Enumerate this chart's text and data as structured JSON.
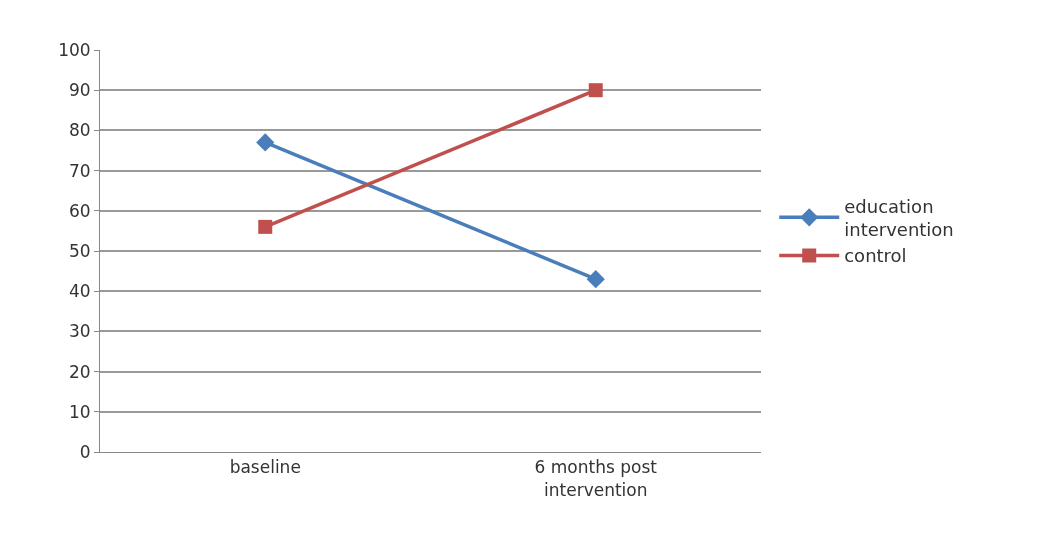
{
  "chart_data": {
    "type": "line",
    "categories": [
      "baseline",
      "6 months post intervention"
    ],
    "series": [
      {
        "name": "education intervention",
        "color": "#4a7ebb",
        "marker": "diamond",
        "values": [
          77,
          43
        ]
      },
      {
        "name": "control",
        "color": "#c0504d",
        "marker": "square",
        "values": [
          56,
          90
        ]
      }
    ],
    "ylim": [
      0,
      100
    ],
    "yticks": [
      0,
      10,
      20,
      30,
      40,
      50,
      60,
      70,
      80,
      90,
      100
    ],
    "grid": "y",
    "legend": "right",
    "line_style": "solid"
  }
}
